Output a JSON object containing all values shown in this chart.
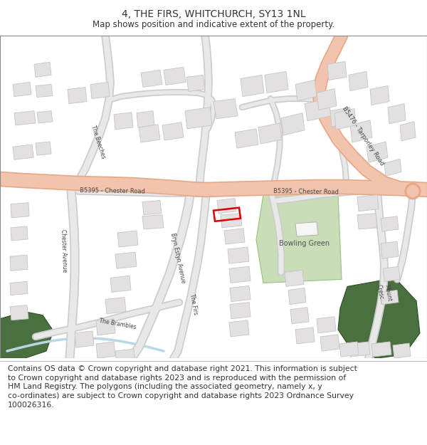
{
  "title": "4, THE FIRS, WHITCHURCH, SY13 1NL",
  "subtitle": "Map shows position and indicative extent of the property.",
  "footer_line1": "Contains OS data © Crown copyright and database right 2021. This information is subject",
  "footer_line2": "to Crown copyright and database rights 2023 and is reproduced with the permission of",
  "footer_line3": "HM Land Registry. The polygons (including the associated geometry, namely x, y",
  "footer_line4": "co-ordinates) are subject to Crown copyright and database rights 2023 Ordnance Survey",
  "footer_line5": "100026316.",
  "bg_color": "#ffffff",
  "map_bg": "#ffffff",
  "road_major_color": "#f2c4ae",
  "road_major_edge": "#e8a888",
  "road_minor_color": "#e8e8e8",
  "road_minor_edge": "#cccccc",
  "building_fill": "#e2e0e0",
  "building_edge": "#c8c4c4",
  "green_light_fill": "#c8ddb8",
  "green_dark_fill": "#4a7040",
  "water_color": "#b8d8e8",
  "property_color": "#dd0000",
  "text_color": "#333333",
  "road_text_color": "#444444",
  "title_fontsize": 10,
  "subtitle_fontsize": 8.5,
  "footer_fontsize": 7.8,
  "road_label_fontsize": 6.0,
  "small_label_fontsize": 5.5
}
